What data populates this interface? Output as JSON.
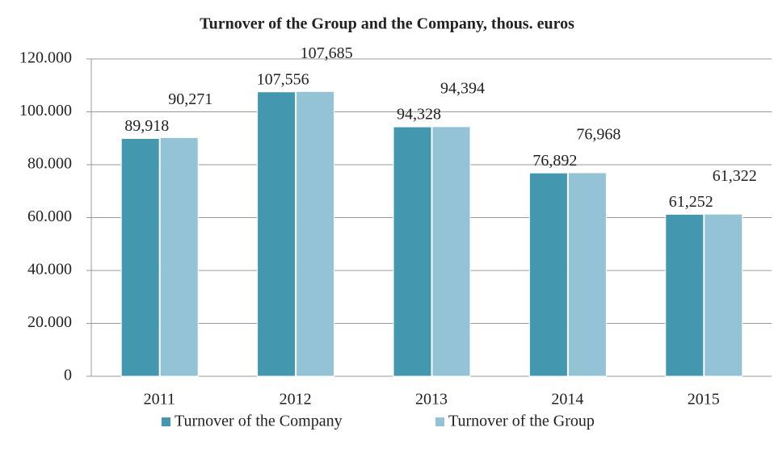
{
  "chart_data": {
    "type": "bar",
    "title": "Turnover of the Group and the Company, thous. euros",
    "categories": [
      "2011",
      "2012",
      "2013",
      "2014",
      "2015"
    ],
    "series": [
      {
        "name": "Turnover of the Company",
        "color": "#4397ae",
        "values": [
          89918,
          107556,
          94328,
          76892,
          61252
        ],
        "value_labels": [
          "89,918",
          "107,556",
          "94,328",
          "76,892",
          "61,252"
        ]
      },
      {
        "name": "Turnover of the Group",
        "color": "#93c3d5",
        "values": [
          90271,
          107685,
          94394,
          76968,
          61322
        ],
        "value_labels": [
          "90,271",
          "107,685",
          "94,394",
          "76,968",
          "61,322"
        ]
      }
    ],
    "ylim": [
      0,
      120000
    ],
    "yticks": [
      0,
      {
        "value": 20000,
        "label": "20.000"
      },
      {
        "value": 40000,
        "label": "40.000"
      },
      {
        "value": 60000,
        "label": "60.000"
      },
      {
        "value": 80000,
        "label": "80.000"
      },
      {
        "value": 100000,
        "label": "100.000"
      },
      {
        "value": 120000,
        "label": "120.000"
      }
    ],
    "grid": true,
    "legend": "bottom"
  }
}
